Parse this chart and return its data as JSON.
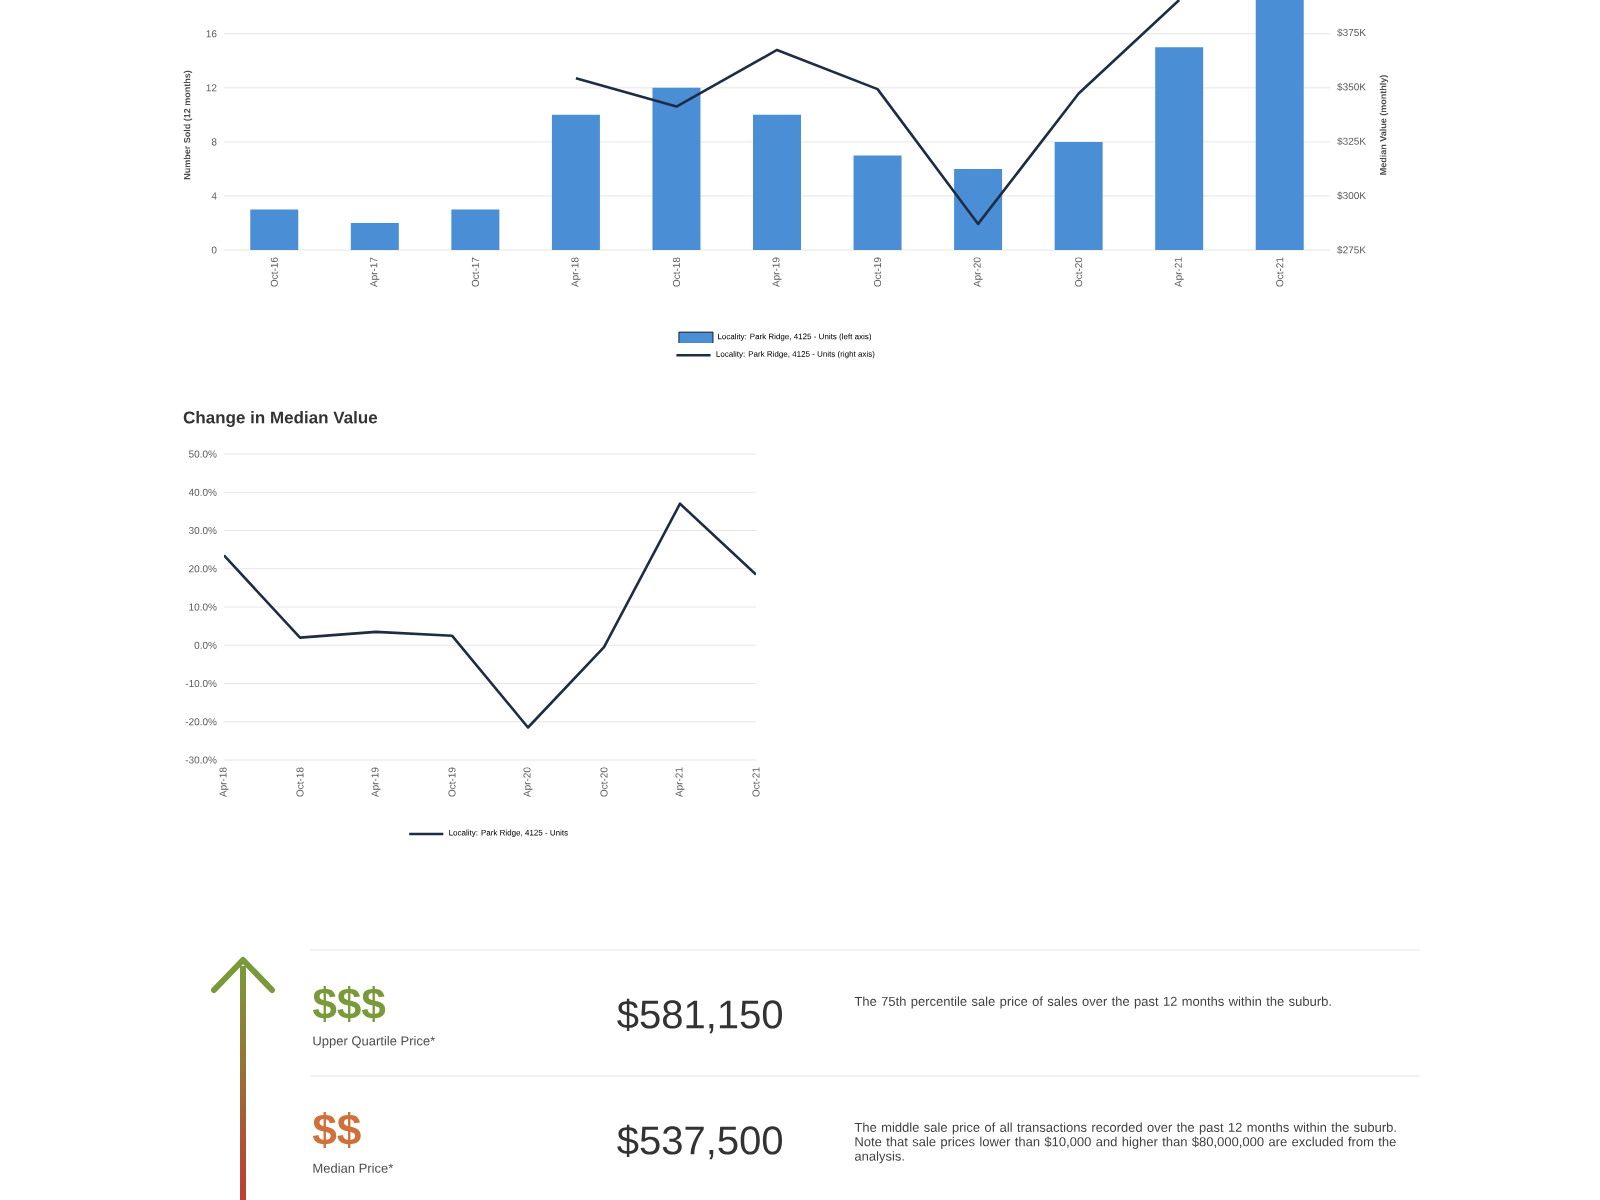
{
  "chart_data": [
    {
      "type": "bar",
      "ylabel": "Number Sold (12 months)",
      "y2label": "Median Value (monthly)",
      "categories": [
        "Oct-16",
        "Apr-17",
        "Oct-17",
        "Apr-18",
        "Oct-18",
        "Apr-19",
        "Oct-19",
        "Apr-20",
        "Oct-20",
        "Apr-21",
        "Oct-21"
      ],
      "series": [
        {
          "name": "Locality: Park Ridge, 4125 - Units (left axis)",
          "type": "bar",
          "color": "#4a8fd6",
          "values": [
            3,
            2,
            3,
            10,
            12,
            10,
            7,
            6,
            8,
            15,
            18.5
          ]
        },
        {
          "name": "Locality: Park Ridge, 4125 - Units (right axis)",
          "type": "line",
          "axis": "y2",
          "color": "#1f2d44",
          "values": [
            null,
            null,
            null,
            354,
            341,
            367,
            349,
            287,
            347,
            390,
            null
          ]
        }
      ],
      "ylim": [
        0,
        18.5
      ],
      "yticks": [
        0,
        4,
        8,
        12,
        16
      ],
      "y2lim": [
        275,
        390
      ],
      "y2ticks": [
        {
          "value": 275,
          "label": "$275K"
        },
        {
          "value": 300,
          "label": "$300K"
        },
        {
          "value": 325,
          "label": "$325K"
        },
        {
          "value": 350,
          "label": "$350K"
        },
        {
          "value": 375,
          "label": "$375K"
        }
      ],
      "grid": "y",
      "legend": "bottom"
    },
    {
      "type": "line",
      "title": "Change in Median Value",
      "categories": [
        "Apr-18",
        "Oct-18",
        "Apr-19",
        "Oct-19",
        "Apr-20",
        "Oct-20",
        "Apr-21",
        "Oct-21"
      ],
      "series": [
        {
          "name": "Locality: Park Ridge, 4125 - Units",
          "color": "#1f2d44",
          "values": [
            23.5,
            2,
            3.5,
            2.5,
            -21.5,
            -0.5,
            37,
            18.5
          ]
        }
      ],
      "ylim": [
        -30,
        50
      ],
      "yticks": [
        {
          "value": -30,
          "label": "-30.0%"
        },
        {
          "value": -20,
          "label": "-20.0%"
        },
        {
          "value": -10,
          "label": "-10.0%"
        },
        {
          "value": 0,
          "label": "0.0%"
        },
        {
          "value": 10,
          "label": "10.0%"
        },
        {
          "value": 20,
          "label": "20.0%"
        },
        {
          "value": 30,
          "label": "30.0%"
        },
        {
          "value": 40,
          "label": "40.0%"
        },
        {
          "value": 50,
          "label": "50.0%"
        }
      ],
      "grid": "y",
      "legend": "bottom"
    },
    {
      "type": "other",
      "colors": [
        "#7a9a3a",
        "#d0703a"
      ],
      "annotations": [
        "$$$",
        "Upper Quartile Price*",
        "$581,150",
        "The 75th percentile sale price of sales over the past 12 months within the suburb.",
        "$$",
        "Median Price*",
        "$537,500",
        "The middle sale price of all transactions recorded over the past 12 months within the suburb. Note that sale prices lower than $10,000 and higher than $80,000,000 are excluded from the analysis."
      ]
    }
  ]
}
